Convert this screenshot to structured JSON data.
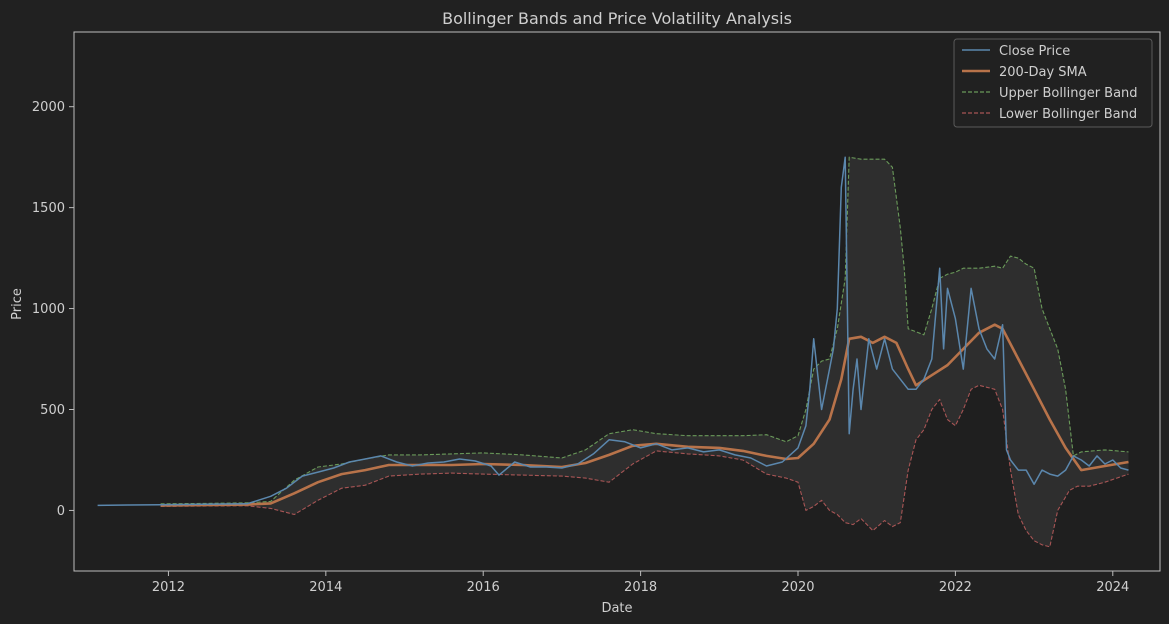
{
  "chart_data": {
    "type": "line",
    "title": "Bollinger Bands and Price Volatility Analysis",
    "xlabel": "Date",
    "ylabel": "Price",
    "xlim": [
      2010.8,
      2024.6
    ],
    "ylim": [
      -300,
      2370
    ],
    "x_ticks": [
      2012,
      2014,
      2016,
      2018,
      2020,
      2022,
      2024
    ],
    "y_ticks": [
      0,
      500,
      1000,
      1500,
      2000
    ],
    "grid": false,
    "legend_position": "top-right",
    "colors": {
      "background": "#212121",
      "plot_background": "#1f1f1f",
      "axes": "#bdbdbd",
      "text": "#cfcfcf",
      "close": "#5b87ad",
      "sma": "#b8734a",
      "upper": "#6a9a5a",
      "lower": "#a85555",
      "band_fill": "#303030"
    },
    "series": [
      {
        "name": "Close Price",
        "style": "solid",
        "x": [
          2011.1,
          2011.5,
          2011.9,
          2012.3,
          2012.7,
          2013.0,
          2013.3,
          2013.5,
          2013.7,
          2013.9,
          2014.1,
          2014.3,
          2014.5,
          2014.7,
          2014.9,
          2015.1,
          2015.3,
          2015.5,
          2015.7,
          2015.9,
          2016.1,
          2016.2,
          2016.4,
          2016.6,
          2016.8,
          2017.0,
          2017.2,
          2017.4,
          2017.6,
          2017.8,
          2018.0,
          2018.2,
          2018.4,
          2018.6,
          2018.8,
          2019.0,
          2019.2,
          2019.4,
          2019.6,
          2019.8,
          2020.0,
          2020.1,
          2020.15,
          2020.2,
          2020.3,
          2020.4,
          2020.45,
          2020.5,
          2020.55,
          2020.6,
          2020.65,
          2020.7,
          2020.75,
          2020.8,
          2020.9,
          2021.0,
          2021.1,
          2021.2,
          2021.3,
          2021.4,
          2021.5,
          2021.6,
          2021.7,
          2021.8,
          2021.85,
          2021.9,
          2022.0,
          2022.1,
          2022.2,
          2022.3,
          2022.4,
          2022.5,
          2022.6,
          2022.65,
          2022.7,
          2022.8,
          2022.9,
          2023.0,
          2023.1,
          2023.2,
          2023.3,
          2023.4,
          2023.5,
          2023.6,
          2023.7,
          2023.8,
          2023.9,
          2024.0,
          2024.1,
          2024.2
        ],
        "y": [
          25,
          27,
          28,
          30,
          32,
          33,
          70,
          110,
          170,
          190,
          210,
          240,
          255,
          270,
          240,
          220,
          235,
          240,
          255,
          245,
          220,
          175,
          240,
          215,
          215,
          210,
          230,
          280,
          350,
          340,
          310,
          330,
          300,
          310,
          290,
          300,
          275,
          260,
          220,
          240,
          310,
          420,
          600,
          850,
          500,
          700,
          800,
          1000,
          1600,
          1750,
          380,
          600,
          750,
          500,
          850,
          700,
          850,
          700,
          650,
          600,
          600,
          650,
          750,
          1200,
          800,
          1100,
          950,
          700,
          1100,
          900,
          800,
          750,
          920,
          300,
          250,
          200,
          200,
          130,
          200,
          180,
          170,
          200,
          270,
          250,
          220,
          270,
          230,
          250,
          210,
          200
        ]
      },
      {
        "name": "200-Day SMA",
        "style": "solid",
        "x": [
          2011.9,
          2012.5,
          2013.0,
          2013.3,
          2013.6,
          2013.9,
          2014.2,
          2014.5,
          2014.8,
          2015.2,
          2015.6,
          2016.0,
          2016.5,
          2017.0,
          2017.3,
          2017.6,
          2017.9,
          2018.2,
          2018.6,
          2019.0,
          2019.3,
          2019.6,
          2019.85,
          2020.0,
          2020.2,
          2020.4,
          2020.55,
          2020.65,
          2020.8,
          2020.95,
          2021.1,
          2021.25,
          2021.4,
          2021.5,
          2021.7,
          2021.9,
          2022.1,
          2022.3,
          2022.5,
          2022.6,
          2022.8,
          2023.0,
          2023.2,
          2023.4,
          2023.6,
          2023.9,
          2024.2
        ],
        "y": [
          25,
          27,
          29,
          35,
          85,
          140,
          180,
          200,
          225,
          225,
          225,
          230,
          225,
          215,
          235,
          275,
          320,
          330,
          315,
          310,
          295,
          270,
          255,
          260,
          330,
          450,
          650,
          850,
          860,
          830,
          860,
          830,
          700,
          620,
          670,
          720,
          800,
          880,
          920,
          900,
          750,
          600,
          450,
          310,
          200,
          220,
          240
        ]
      },
      {
        "name": "Upper Bollinger Band",
        "style": "dashed",
        "x": [
          2011.9,
          2012.5,
          2013.0,
          2013.3,
          2013.6,
          2013.9,
          2014.2,
          2014.5,
          2014.8,
          2015.2,
          2015.6,
          2016.0,
          2016.5,
          2017.0,
          2017.3,
          2017.6,
          2017.9,
          2018.2,
          2018.6,
          2019.0,
          2019.3,
          2019.6,
          2019.85,
          2020.0,
          2020.1,
          2020.2,
          2020.3,
          2020.4,
          2020.5,
          2020.6,
          2020.65,
          2020.8,
          2020.95,
          2021.1,
          2021.2,
          2021.3,
          2021.35,
          2021.4,
          2021.6,
          2021.7,
          2021.8,
          2021.9,
          2022.0,
          2022.1,
          2022.3,
          2022.5,
          2022.6,
          2022.7,
          2022.8,
          2022.9,
          2023.0,
          2023.1,
          2023.2,
          2023.3,
          2023.4,
          2023.5,
          2023.6,
          2023.9,
          2024.2
        ],
        "y": [
          33,
          35,
          38,
          45,
          150,
          215,
          230,
          255,
          275,
          275,
          280,
          285,
          275,
          260,
          300,
          380,
          400,
          380,
          370,
          370,
          370,
          375,
          340,
          370,
          500,
          700,
          740,
          750,
          900,
          1150,
          1750,
          1740,
          1740,
          1740,
          1700,
          1400,
          1200,
          900,
          870,
          1000,
          1150,
          1170,
          1180,
          1200,
          1200,
          1210,
          1200,
          1260,
          1250,
          1220,
          1200,
          1000,
          900,
          800,
          600,
          270,
          290,
          300,
          290
        ]
      },
      {
        "name": "Lower Bollinger Band",
        "style": "dashed",
        "x": [
          2011.9,
          2012.5,
          2013.0,
          2013.3,
          2013.6,
          2013.9,
          2014.2,
          2014.5,
          2014.8,
          2015.2,
          2015.6,
          2016.0,
          2016.5,
          2017.0,
          2017.3,
          2017.6,
          2017.9,
          2018.2,
          2018.6,
          2019.0,
          2019.3,
          2019.6,
          2019.85,
          2020.0,
          2020.1,
          2020.2,
          2020.3,
          2020.4,
          2020.5,
          2020.6,
          2020.7,
          2020.8,
          2020.95,
          2021.1,
          2021.2,
          2021.3,
          2021.4,
          2021.5,
          2021.6,
          2021.7,
          2021.8,
          2021.9,
          2022.0,
          2022.1,
          2022.2,
          2022.3,
          2022.4,
          2022.5,
          2022.6,
          2022.7,
          2022.8,
          2022.9,
          2023.0,
          2023.1,
          2023.2,
          2023.3,
          2023.45,
          2023.55,
          2023.7,
          2023.9,
          2024.2
        ],
        "y": [
          20,
          22,
          23,
          10,
          -20,
          50,
          110,
          125,
          170,
          180,
          185,
          180,
          175,
          170,
          160,
          140,
          230,
          295,
          280,
          270,
          250,
          180,
          160,
          140,
          0,
          20,
          50,
          0,
          -20,
          -60,
          -70,
          -40,
          -100,
          -50,
          -80,
          -60,
          200,
          350,
          400,
          500,
          550,
          450,
          420,
          500,
          600,
          620,
          610,
          600,
          500,
          200,
          -20,
          -100,
          -150,
          -170,
          -180,
          0,
          100,
          120,
          120,
          140,
          180
        ]
      }
    ]
  }
}
